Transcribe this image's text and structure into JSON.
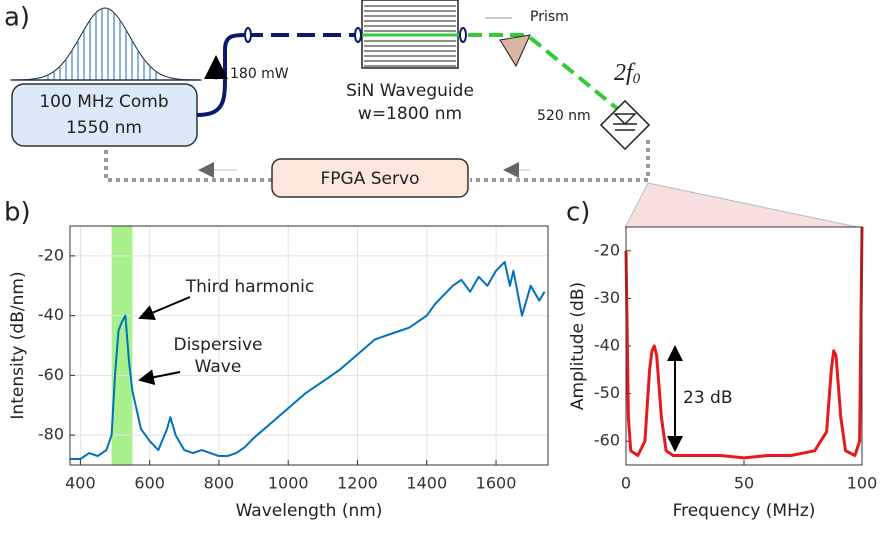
{
  "diagram": {
    "panel_label": "a)",
    "comb_label": [
      "100 MHz Comb",
      "1550 nm"
    ],
    "power_label": "180 mW",
    "waveguide_label": [
      "SiN Waveguide",
      "w=1800 nm"
    ],
    "prism_label": "Prism",
    "green_label": "520 nm",
    "detector_label": "2f",
    "detector_subscript": "0",
    "servo_label": "FPGA Servo"
  },
  "chart_data": [
    {
      "type": "line",
      "panel_label": "b)",
      "x_label": "Wavelength (nm)",
      "y_label": "Intensity (dB/nm)",
      "xlim": [
        370,
        1750
      ],
      "ylim": [
        -90,
        -10
      ],
      "xticks": [
        400,
        600,
        800,
        1000,
        1200,
        1400,
        1600
      ],
      "yticks": [
        -80,
        -60,
        -40,
        -20
      ],
      "grid": true,
      "highlight": [
        490,
        550
      ],
      "highlight_color": "#a8f08c",
      "annotations": [
        [
          "Third harmonic"
        ],
        [
          "Dispersive",
          "Wave"
        ]
      ],
      "series": [
        {
          "color": "#0072bd",
          "x": [
            370,
            400,
            425,
            450,
            475,
            490,
            500,
            510,
            520,
            530,
            540,
            550,
            575,
            600,
            625,
            650,
            660,
            675,
            700,
            725,
            750,
            775,
            800,
            825,
            850,
            875,
            900,
            950,
            1000,
            1050,
            1100,
            1150,
            1200,
            1250,
            1300,
            1350,
            1400,
            1425,
            1450,
            1475,
            1500,
            1525,
            1550,
            1575,
            1600,
            1625,
            1640,
            1650,
            1675,
            1700,
            1725,
            1740
          ],
          "values": [
            -88,
            -88,
            -86,
            -87,
            -85,
            -80,
            -60,
            -45,
            -42,
            -40,
            -55,
            -65,
            -78,
            -82,
            -85,
            -78,
            -74,
            -80,
            -85,
            -86,
            -85,
            -86,
            -87,
            -87,
            -86,
            -84,
            -81,
            -76,
            -71,
            -66,
            -62,
            -58,
            -53,
            -48,
            -46,
            -44,
            -40,
            -36,
            -33,
            -30,
            -28,
            -32,
            -27,
            -30,
            -25,
            -22,
            -30,
            -25,
            -40,
            -30,
            -35,
            -32
          ]
        }
      ]
    },
    {
      "type": "line",
      "panel_label": "c)",
      "x_label": "Frequency (MHz)",
      "y_label": "Amplitude (dB)",
      "xlim": [
        0,
        100
      ],
      "ylim": [
        -65,
        -15
      ],
      "xticks": [
        0,
        50,
        100
      ],
      "yticks": [
        -60,
        -50,
        -40,
        -30,
        -20
      ],
      "grid": false,
      "annotations": [
        [
          "23 dB"
        ]
      ],
      "series": [
        {
          "color": "#e41a1c",
          "x": [
            0,
            1,
            2,
            5,
            8,
            10,
            11,
            12,
            13,
            15,
            17,
            20,
            30,
            40,
            50,
            60,
            70,
            80,
            85,
            87,
            88,
            89,
            91,
            93,
            97,
            99,
            100
          ],
          "values": [
            -20,
            -55,
            -62,
            -63,
            -60,
            -45,
            -41,
            -40,
            -42,
            -55,
            -62,
            -63,
            -63,
            -63,
            -63.5,
            -63,
            -63,
            -62,
            -58,
            -45,
            -41,
            -42,
            -55,
            -62,
            -63,
            -60,
            -15
          ]
        }
      ]
    }
  ]
}
